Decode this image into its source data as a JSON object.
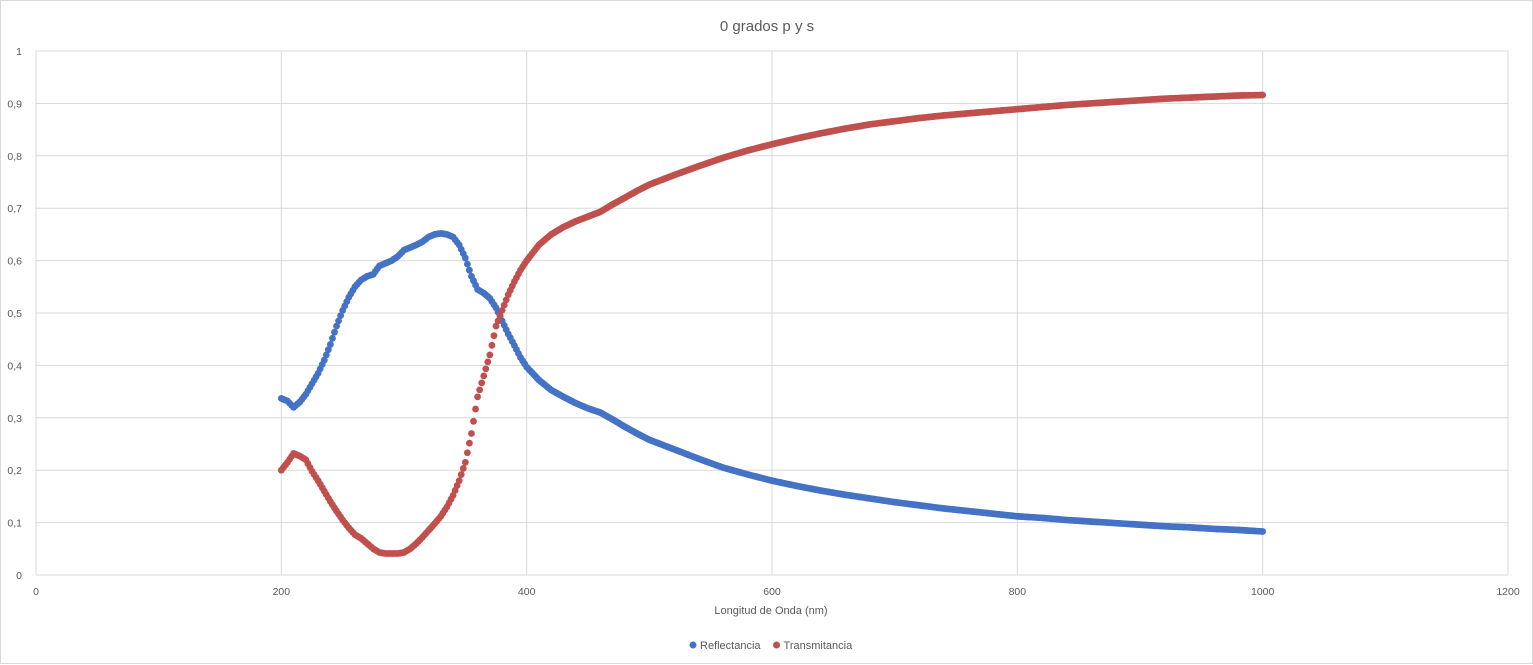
{
  "chart_data": {
    "type": "scatter",
    "title": "0 grados p y s",
    "xlabel": "Longitud de Onda (nm)",
    "ylabel": "",
    "xlim": [
      0,
      1200
    ],
    "ylim": [
      0,
      1
    ],
    "x_ticks": [
      0,
      200,
      400,
      600,
      800,
      1000,
      1200
    ],
    "x_tick_labels": [
      "0",
      "200",
      "400",
      "600",
      "800",
      "1000",
      "1200"
    ],
    "y_ticks": [
      0,
      0.1,
      0.2,
      0.3,
      0.4,
      0.5,
      0.6,
      0.7,
      0.8,
      0.9,
      1
    ],
    "y_tick_labels": [
      "0",
      "0,1",
      "0,2",
      "0,3",
      "0,4",
      "0,5",
      "0,6",
      "0,7",
      "0,8",
      "0,9",
      "1"
    ],
    "grid": true,
    "legend_position": "bottom",
    "series": [
      {
        "name": "Reflectancia",
        "color": "#4472C4",
        "points": [
          [
            200,
            0.337
          ],
          [
            205,
            0.332
          ],
          [
            210,
            0.32
          ],
          [
            215,
            0.33
          ],
          [
            220,
            0.345
          ],
          [
            225,
            0.365
          ],
          [
            230,
            0.385
          ],
          [
            235,
            0.41
          ],
          [
            240,
            0.44
          ],
          [
            245,
            0.475
          ],
          [
            250,
            0.505
          ],
          [
            255,
            0.53
          ],
          [
            260,
            0.55
          ],
          [
            265,
            0.563
          ],
          [
            270,
            0.57
          ],
          [
            275,
            0.574
          ],
          [
            280,
            0.59
          ],
          [
            285,
            0.595
          ],
          [
            290,
            0.6
          ],
          [
            295,
            0.608
          ],
          [
            300,
            0.62
          ],
          [
            305,
            0.625
          ],
          [
            310,
            0.63
          ],
          [
            315,
            0.636
          ],
          [
            320,
            0.645
          ],
          [
            325,
            0.65
          ],
          [
            330,
            0.652
          ],
          [
            335,
            0.65
          ],
          [
            340,
            0.645
          ],
          [
            345,
            0.63
          ],
          [
            350,
            0.605
          ],
          [
            355,
            0.57
          ],
          [
            360,
            0.545
          ],
          [
            365,
            0.538
          ],
          [
            370,
            0.528
          ],
          [
            375,
            0.51
          ],
          [
            380,
            0.485
          ],
          [
            385,
            0.46
          ],
          [
            390,
            0.438
          ],
          [
            395,
            0.415
          ],
          [
            400,
            0.397
          ],
          [
            410,
            0.372
          ],
          [
            420,
            0.353
          ],
          [
            430,
            0.34
          ],
          [
            440,
            0.328
          ],
          [
            450,
            0.318
          ],
          [
            460,
            0.31
          ],
          [
            470,
            0.297
          ],
          [
            480,
            0.283
          ],
          [
            490,
            0.27
          ],
          [
            500,
            0.258
          ],
          [
            520,
            0.24
          ],
          [
            540,
            0.222
          ],
          [
            560,
            0.205
          ],
          [
            580,
            0.192
          ],
          [
            600,
            0.18
          ],
          [
            620,
            0.17
          ],
          [
            640,
            0.161
          ],
          [
            660,
            0.153
          ],
          [
            680,
            0.146
          ],
          [
            700,
            0.139
          ],
          [
            720,
            0.133
          ],
          [
            740,
            0.127
          ],
          [
            760,
            0.122
          ],
          [
            780,
            0.117
          ],
          [
            800,
            0.112
          ],
          [
            820,
            0.109
          ],
          [
            840,
            0.105
          ],
          [
            860,
            0.102
          ],
          [
            880,
            0.099
          ],
          [
            900,
            0.096
          ],
          [
            920,
            0.093
          ],
          [
            940,
            0.091
          ],
          [
            960,
            0.088
          ],
          [
            980,
            0.086
          ],
          [
            1000,
            0.083
          ]
        ]
      },
      {
        "name": "Transmitancia",
        "color": "#C0504D",
        "points": [
          [
            200,
            0.2
          ],
          [
            205,
            0.215
          ],
          [
            210,
            0.232
          ],
          [
            215,
            0.227
          ],
          [
            220,
            0.22
          ],
          [
            225,
            0.198
          ],
          [
            230,
            0.18
          ],
          [
            235,
            0.16
          ],
          [
            240,
            0.14
          ],
          [
            245,
            0.122
          ],
          [
            250,
            0.105
          ],
          [
            255,
            0.09
          ],
          [
            260,
            0.077
          ],
          [
            265,
            0.07
          ],
          [
            270,
            0.06
          ],
          [
            275,
            0.05
          ],
          [
            280,
            0.043
          ],
          [
            285,
            0.041
          ],
          [
            290,
            0.041
          ],
          [
            295,
            0.041
          ],
          [
            300,
            0.043
          ],
          [
            305,
            0.05
          ],
          [
            310,
            0.06
          ],
          [
            315,
            0.072
          ],
          [
            320,
            0.085
          ],
          [
            325,
            0.098
          ],
          [
            330,
            0.112
          ],
          [
            335,
            0.13
          ],
          [
            340,
            0.152
          ],
          [
            345,
            0.18
          ],
          [
            350,
            0.215
          ],
          [
            355,
            0.27
          ],
          [
            360,
            0.34
          ],
          [
            365,
            0.38
          ],
          [
            370,
            0.42
          ],
          [
            375,
            0.475
          ],
          [
            380,
            0.505
          ],
          [
            385,
            0.535
          ],
          [
            390,
            0.56
          ],
          [
            395,
            0.582
          ],
          [
            400,
            0.6
          ],
          [
            410,
            0.63
          ],
          [
            420,
            0.65
          ],
          [
            430,
            0.664
          ],
          [
            440,
            0.675
          ],
          [
            450,
            0.684
          ],
          [
            460,
            0.693
          ],
          [
            470,
            0.707
          ],
          [
            480,
            0.72
          ],
          [
            490,
            0.733
          ],
          [
            500,
            0.745
          ],
          [
            520,
            0.763
          ],
          [
            540,
            0.78
          ],
          [
            560,
            0.796
          ],
          [
            580,
            0.81
          ],
          [
            600,
            0.822
          ],
          [
            620,
            0.833
          ],
          [
            640,
            0.843
          ],
          [
            660,
            0.852
          ],
          [
            680,
            0.86
          ],
          [
            700,
            0.866
          ],
          [
            720,
            0.872
          ],
          [
            740,
            0.877
          ],
          [
            760,
            0.881
          ],
          [
            780,
            0.885
          ],
          [
            800,
            0.889
          ],
          [
            820,
            0.893
          ],
          [
            840,
            0.897
          ],
          [
            860,
            0.9
          ],
          [
            880,
            0.903
          ],
          [
            900,
            0.906
          ],
          [
            920,
            0.909
          ],
          [
            940,
            0.911
          ],
          [
            960,
            0.913
          ],
          [
            980,
            0.915
          ],
          [
            1000,
            0.916
          ]
        ]
      }
    ]
  }
}
